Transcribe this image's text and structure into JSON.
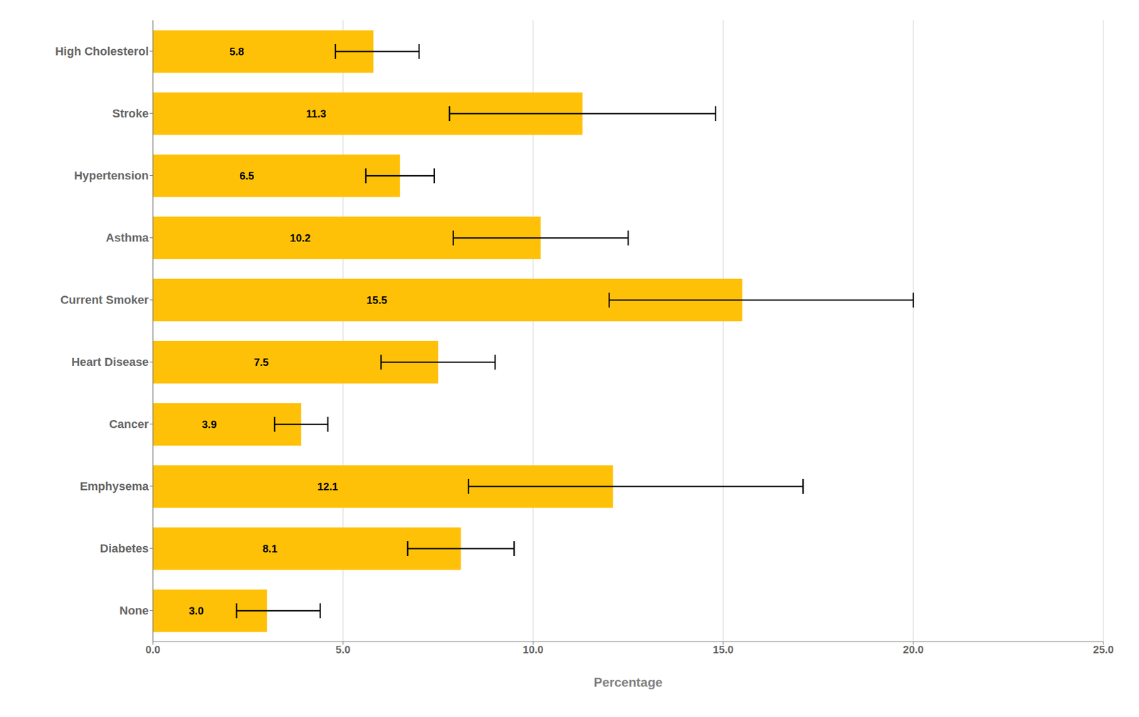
{
  "chart_data": {
    "type": "bar",
    "orientation": "horizontal",
    "categories": [
      "High Cholesterol",
      "Stroke",
      "Hypertension",
      "Asthma",
      "Current Smoker",
      "Heart Disease",
      "Cancer",
      "Emphysema",
      "Diabetes",
      "None"
    ],
    "values": [
      5.8,
      11.3,
      6.5,
      10.2,
      15.5,
      7.5,
      3.9,
      12.1,
      8.1,
      3.0
    ],
    "value_labels": [
      "5.8",
      "11.3",
      "6.5",
      "10.2",
      "15.5",
      "7.5",
      "3.9",
      "12.1",
      "8.1",
      "3.0"
    ],
    "data_labels": true,
    "error_low": [
      1.0,
      3.5,
      0.9,
      2.3,
      3.5,
      1.5,
      0.7,
      3.8,
      1.4,
      0.8
    ],
    "error_high": [
      1.2,
      3.5,
      0.9,
      2.3,
      4.5,
      1.5,
      0.7,
      5.0,
      1.4,
      1.4
    ],
    "color": "#FFC107",
    "xlabel": "Percentage",
    "xlim": [
      0,
      25
    ],
    "xticks": [
      {
        "value": 0,
        "label": "0.0"
      },
      {
        "value": 5,
        "label": "5.0"
      },
      {
        "value": 10,
        "label": "10.0"
      },
      {
        "value": 15,
        "label": "15.0"
      },
      {
        "value": 20,
        "label": "20.0"
      },
      {
        "value": 25,
        "label": "25.0"
      }
    ],
    "grid": true
  }
}
